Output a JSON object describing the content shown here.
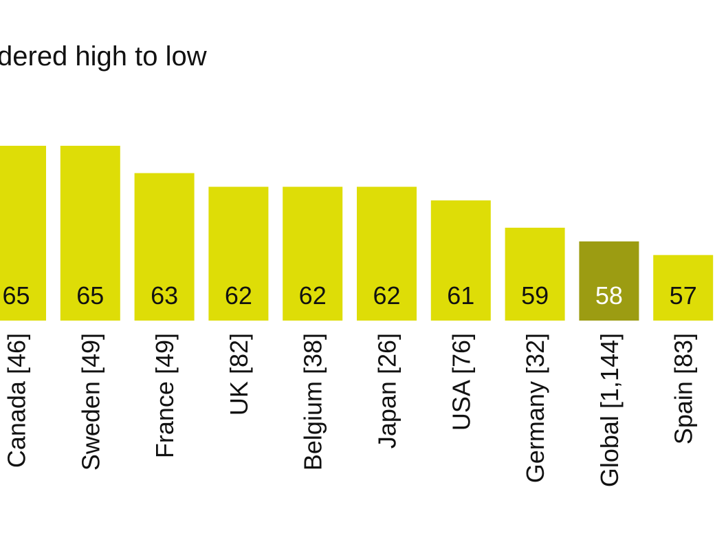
{
  "chart_data": {
    "type": "bar",
    "title": "dered high to low",
    "categories": [
      "Canada [46]",
      "Sweden [49]",
      "France [49]",
      "UK [82]",
      "Belgium [38]",
      "Japan [26]",
      "USA [76]",
      "Germany [32]",
      "Global [1,144]",
      "Spain [83]"
    ],
    "values": [
      65,
      65,
      63,
      62,
      62,
      62,
      61,
      59,
      58,
      57
    ],
    "value_labels": [
      "65",
      "65",
      "63",
      "62",
      "62",
      "62",
      "61",
      "59",
      "58",
      "57"
    ],
    "highlight_index": 8,
    "xlabel": "",
    "ylabel": "",
    "grid": false,
    "legend": "none",
    "colors": {
      "bar": "#dedd07",
      "highlight_bar": "#9c9c12",
      "label_text": "#111111",
      "highlight_label_text": "#ffffff"
    }
  }
}
